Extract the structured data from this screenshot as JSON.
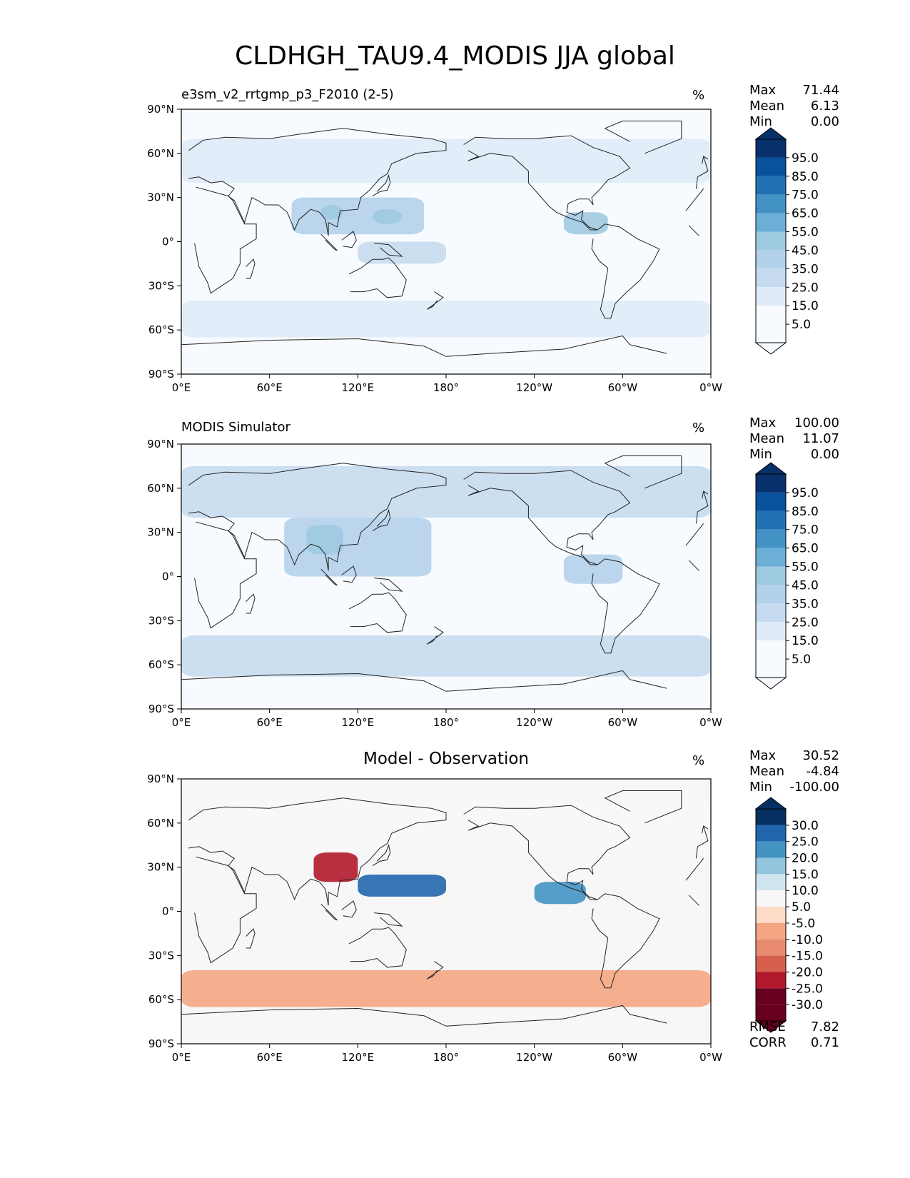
{
  "figure_title": "CLDHGH_TAU9.4_MODIS JJA global",
  "colors": {
    "land_outline": "#222222",
    "axis": "#000000",
    "blues": [
      "#f7fbff",
      "#deebf7",
      "#c6dbef",
      "#b4d1ea",
      "#9ecae1",
      "#6baed6",
      "#4292c6",
      "#2171b5",
      "#08519c",
      "#08306b"
    ],
    "diff": [
      "#67001f",
      "#b2182b",
      "#d6604d",
      "#e88b70",
      "#f4a582",
      "#fddbc7",
      "#f7f7f7",
      "#d1e5f0",
      "#92c5de",
      "#4393c3",
      "#2166ac",
      "#053061"
    ]
  },
  "chart_data": [
    {
      "type": "heatmap",
      "title": "e3sm_v2_rrtgmp_p3_F2010 (2-5)",
      "units": "%",
      "stats": {
        "max": "71.44",
        "mean": "6.13",
        "min": "0.00"
      },
      "colorbar_levels": [
        "95.0",
        "85.0",
        "75.0",
        "65.0",
        "55.0",
        "45.0",
        "35.0",
        "25.0",
        "15.0",
        "5.0"
      ],
      "xticks": [
        "0°E",
        "60°E",
        "120°E",
        "180°",
        "120°W",
        "60°W",
        "0°W"
      ],
      "yticks": [
        "90°N",
        "60°N",
        "30°N",
        "0°",
        "30°S",
        "60°S",
        "90°S"
      ],
      "xlim": [
        0,
        360
      ],
      "ylim": [
        -90,
        90
      ],
      "features": [
        {
          "lon": [
            75,
            165
          ],
          "lat": [
            5,
            30
          ],
          "value": 35
        },
        {
          "lon": [
            95,
            110
          ],
          "lat": [
            15,
            25
          ],
          "value": 45
        },
        {
          "lon": [
            130,
            150
          ],
          "lat": [
            12,
            22
          ],
          "value": 40
        },
        {
          "lon": [
            260,
            290
          ],
          "lat": [
            5,
            20
          ],
          "value": 45
        },
        {
          "lon": [
            120,
            180
          ],
          "lat": [
            -15,
            0
          ],
          "value": 20
        },
        {
          "lon": [
            0,
            360
          ],
          "lat": [
            -65,
            -40
          ],
          "value": 15
        },
        {
          "lon": [
            0,
            360
          ],
          "lat": [
            40,
            70
          ],
          "value": 10
        }
      ]
    },
    {
      "type": "heatmap",
      "title": "MODIS Simulator",
      "units": "%",
      "stats": {
        "max": "100.00",
        "mean": "11.07",
        "min": "0.00"
      },
      "colorbar_levels": [
        "95.0",
        "85.0",
        "75.0",
        "65.0",
        "55.0",
        "45.0",
        "35.0",
        "25.0",
        "15.0",
        "5.0"
      ],
      "xticks": [
        "0°E",
        "60°E",
        "120°E",
        "180°",
        "120°W",
        "60°W",
        "0°W"
      ],
      "yticks": [
        "90°N",
        "60°N",
        "30°N",
        "0°",
        "30°S",
        "60°S",
        "90°S"
      ],
      "xlim": [
        0,
        360
      ],
      "ylim": [
        -90,
        90
      ],
      "features": [
        {
          "lon": [
            70,
            170
          ],
          "lat": [
            0,
            40
          ],
          "value": 30
        },
        {
          "lon": [
            85,
            110
          ],
          "lat": [
            15,
            35
          ],
          "value": 40
        },
        {
          "lon": [
            0,
            360
          ],
          "lat": [
            -68,
            -40
          ],
          "value": 25
        },
        {
          "lon": [
            0,
            360
          ],
          "lat": [
            40,
            75
          ],
          "value": 20
        },
        {
          "lon": [
            260,
            300
          ],
          "lat": [
            -5,
            15
          ],
          "value": 35
        }
      ]
    },
    {
      "type": "heatmap",
      "title": "Model - Observation",
      "units": "%",
      "stats": {
        "max": "30.52",
        "mean": "-4.84",
        "min": "-100.00"
      },
      "colorbar_levels": [
        "30.0",
        "25.0",
        "20.0",
        "15.0",
        "10.0",
        "5.0",
        "-5.0",
        "-10.0",
        "-15.0",
        "-20.0",
        "-25.0",
        "-30.0"
      ],
      "metrics": {
        "rmse": "7.82",
        "corr": "0.71"
      },
      "xticks": [
        "0°E",
        "60°E",
        "120°E",
        "180°",
        "120°W",
        "60°W",
        "0°W"
      ],
      "yticks": [
        "90°N",
        "60°N",
        "30°N",
        "0°",
        "30°S",
        "60°S",
        "90°S"
      ],
      "xlim": [
        0,
        360
      ],
      "ylim": [
        -90,
        90
      ],
      "features": [
        {
          "lon": [
            90,
            120
          ],
          "lat": [
            20,
            40
          ],
          "value": -25
        },
        {
          "lon": [
            120,
            180
          ],
          "lat": [
            10,
            25
          ],
          "value": 20
        },
        {
          "lon": [
            240,
            275
          ],
          "lat": [
            5,
            20
          ],
          "value": 15
        },
        {
          "lon": [
            0,
            360
          ],
          "lat": [
            -65,
            -40
          ],
          "value": -10
        },
        {
          "lon": [
            0,
            360
          ],
          "lat": [
            40,
            75
          ],
          "value": -5
        }
      ]
    }
  ]
}
